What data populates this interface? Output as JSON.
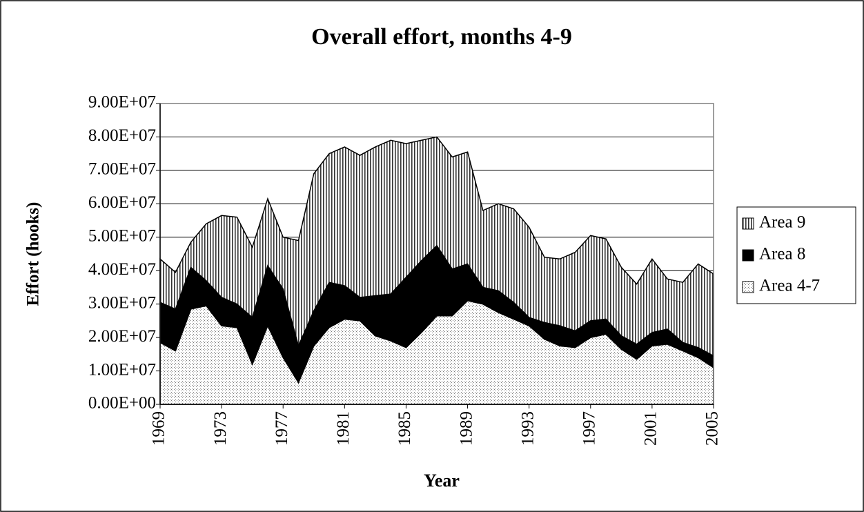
{
  "chart_data": {
    "type": "stacked-area",
    "title": "Overall effort, months 4-9",
    "x_label": "Year",
    "y_label": "Effort (hooks)",
    "x": [
      1969,
      1970,
      1971,
      1972,
      1973,
      1974,
      1975,
      1976,
      1977,
      1978,
      1979,
      1980,
      1981,
      1982,
      1983,
      1984,
      1985,
      1986,
      1987,
      1988,
      1989,
      1990,
      1991,
      1992,
      1993,
      1994,
      1995,
      1996,
      1997,
      1998,
      1999,
      2000,
      2001,
      2002,
      2003,
      2004,
      2005
    ],
    "xlim": [
      1969,
      2005
    ],
    "xticks": [
      1969,
      1973,
      1977,
      1981,
      1985,
      1989,
      1993,
      1997,
      2001,
      2005
    ],
    "ylim": [
      0,
      90000000
    ],
    "yticks": [
      {
        "value": 0,
        "label": "0.00E+00"
      },
      {
        "value": 10000000,
        "label": "1.00E+07"
      },
      {
        "value": 20000000,
        "label": "2.00E+07"
      },
      {
        "value": 30000000,
        "label": "3.00E+07"
      },
      {
        "value": 40000000,
        "label": "4.00E+07"
      },
      {
        "value": 50000000,
        "label": "5.00E+07"
      },
      {
        "value": 60000000,
        "label": "6.00E+07"
      },
      {
        "value": 70000000,
        "label": "7.00E+07"
      },
      {
        "value": 80000000,
        "label": "8.00E+07"
      },
      {
        "value": 90000000,
        "label": "9.00E+07"
      }
    ],
    "grid": true,
    "legend": "right",
    "series": [
      {
        "name": "Area 4-7",
        "color": "#000000",
        "pattern": "dots",
        "values": [
          18500000,
          16000000,
          28500000,
          29500000,
          23500000,
          23000000,
          12000000,
          23500000,
          14000000,
          6500000,
          17500000,
          23000000,
          25500000,
          25000000,
          20500000,
          19000000,
          17000000,
          21500000,
          26500000,
          26500000,
          31000000,
          30000000,
          27500000,
          25500000,
          23500000,
          19500000,
          17500000,
          17000000,
          20000000,
          21000000,
          16500000,
          13500000,
          17500000,
          18000000,
          16000000,
          14000000,
          11000000
        ]
      },
      {
        "name": "Area 8",
        "color": "#000000",
        "pattern": "solid",
        "values": [
          12000000,
          12500000,
          12500000,
          7500000,
          8500000,
          7000000,
          14000000,
          18000000,
          20500000,
          11000000,
          10500000,
          13500000,
          10000000,
          7000000,
          12000000,
          14000000,
          21000000,
          21500000,
          21000000,
          14000000,
          11000000,
          5000000,
          6500000,
          5000000,
          2500000,
          5000000,
          6000000,
          5000000,
          5000000,
          4500000,
          4000000,
          4500000,
          4000000,
          4500000,
          2500000,
          3000000,
          3500000
        ]
      },
      {
        "name": "Area 9",
        "color": "#000000",
        "pattern": "vertical-lines",
        "values": [
          13000000,
          11000000,
          7500000,
          17000000,
          24500000,
          26000000,
          21000000,
          20000000,
          15500000,
          31500000,
          41000000,
          38500000,
          41500000,
          42500000,
          44500000,
          46000000,
          40000000,
          36000000,
          32500000,
          33500000,
          33500000,
          23000000,
          26000000,
          28000000,
          27000000,
          19500000,
          20000000,
          23500000,
          25500000,
          24000000,
          20500000,
          18000000,
          22000000,
          15000000,
          18000000,
          25000000,
          24500000
        ]
      }
    ]
  }
}
